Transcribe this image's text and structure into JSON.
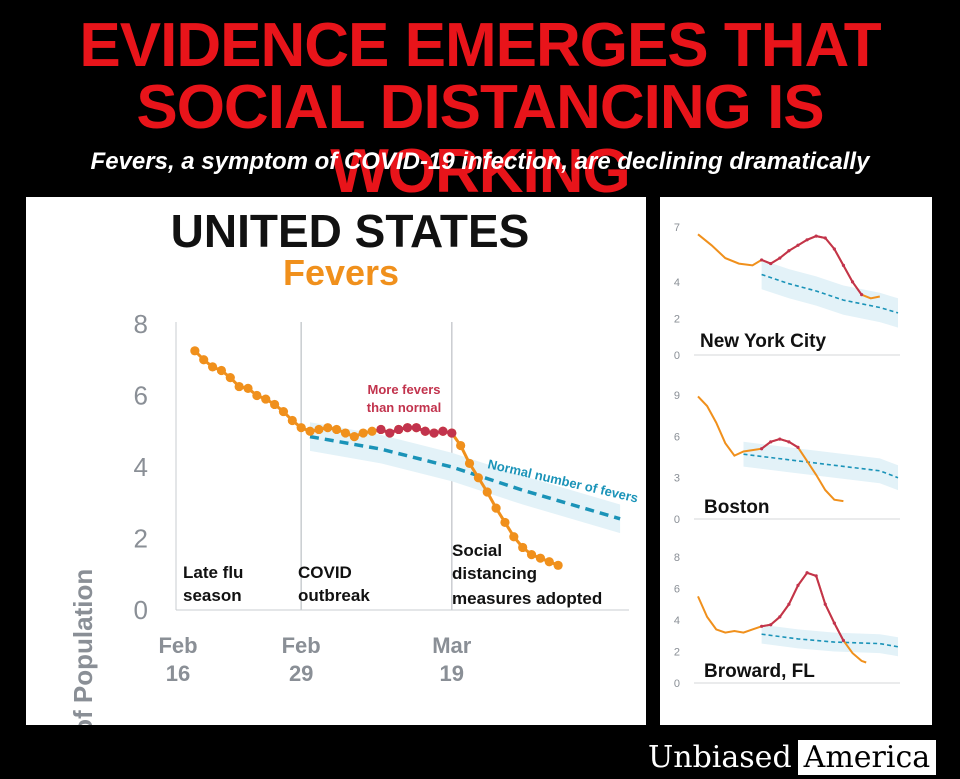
{
  "headline": {
    "line1": "EVIDENCE EMERGES THAT",
    "line2": "SOCIAL DISTANCING IS WORKING",
    "subtitle": "Fevers, a symptom of COVID-19 infection, are declining dramatically"
  },
  "brand": {
    "part1": "Unbiased",
    "part2": "America"
  },
  "colors": {
    "headline": "#e8141a",
    "observed": "#f0901c",
    "above_normal": "#c2334d",
    "expected": "#1a93b8",
    "band": "#e3f2f8",
    "axis_text": "#8a8f96"
  },
  "chart_data": [
    {
      "type": "line",
      "title": "UNITED STATES",
      "subtitle": "Fevers",
      "ylabel": "% of Population",
      "ylim": [
        0,
        8
      ],
      "yticks": [
        0,
        2,
        4,
        6,
        8
      ],
      "x_range": [
        0,
        40
      ],
      "x_ticks": [
        {
          "x": 0,
          "label1": "Feb",
          "label2": "16"
        },
        {
          "x": 13,
          "label1": "Feb",
          "label2": "29"
        },
        {
          "x": 30,
          "label1": "Mar",
          "label2": "19"
        }
      ],
      "phases": [
        {
          "x": 13,
          "label1": "COVID",
          "label2": "outbreak"
        },
        {
          "x": 30,
          "label1": "Social",
          "label2": "distancing",
          "label3": "measures adopted"
        }
      ],
      "phase0": {
        "label1": "Late flu",
        "label2": "season"
      },
      "annotations": {
        "above_normal1": "More fevers",
        "above_normal2": "than normal",
        "normal": "Normal number of fevers"
      },
      "observed": [
        [
          1,
          7.25
        ],
        [
          2,
          7.0
        ],
        [
          3,
          6.8
        ],
        [
          4,
          6.7
        ],
        [
          5,
          6.5
        ],
        [
          6,
          6.25
        ],
        [
          7,
          6.2
        ],
        [
          8,
          6.0
        ],
        [
          9,
          5.9
        ],
        [
          10,
          5.75
        ],
        [
          11,
          5.55
        ],
        [
          12,
          5.3
        ],
        [
          13,
          5.1
        ],
        [
          14,
          5.0
        ],
        [
          15,
          5.05
        ],
        [
          16,
          5.1
        ],
        [
          17,
          5.05
        ],
        [
          18,
          4.95
        ],
        [
          19,
          4.85
        ],
        [
          20,
          4.95
        ],
        [
          21,
          5.0
        ],
        [
          22,
          5.05
        ],
        [
          23,
          4.95
        ],
        [
          24,
          5.05
        ],
        [
          25,
          5.1
        ],
        [
          26,
          5.1
        ],
        [
          27,
          5.0
        ],
        [
          28,
          4.95
        ],
        [
          29,
          5.0
        ],
        [
          30,
          4.95
        ],
        [
          31,
          4.6
        ],
        [
          32,
          4.1
        ],
        [
          33,
          3.7
        ],
        [
          34,
          3.3
        ],
        [
          35,
          2.85
        ],
        [
          36,
          2.45
        ],
        [
          37,
          2.05
        ],
        [
          38,
          1.75
        ],
        [
          39,
          1.55
        ],
        [
          40,
          1.45
        ],
        [
          41,
          1.35
        ],
        [
          42,
          1.25
        ]
      ],
      "above_normal": [
        [
          22,
          5.05
        ],
        [
          23,
          4.95
        ],
        [
          24,
          5.05
        ],
        [
          25,
          5.1
        ],
        [
          26,
          5.1
        ],
        [
          27,
          5.0
        ],
        [
          28,
          4.95
        ],
        [
          29,
          5.0
        ],
        [
          30,
          4.95
        ]
      ],
      "expected": [
        [
          14,
          4.85
        ],
        [
          22,
          4.5
        ],
        [
          30,
          4.0
        ],
        [
          38,
          3.35
        ],
        [
          49,
          2.55
        ]
      ],
      "band_halfwidth": 0.4
    },
    {
      "type": "line",
      "name": "New York City",
      "ylim": [
        0,
        7
      ],
      "yticks": [
        0,
        2,
        4,
        7
      ],
      "x_range": [
        0,
        40
      ],
      "observed": [
        [
          0,
          6.6
        ],
        [
          3,
          6.0
        ],
        [
          6,
          5.3
        ],
        [
          9,
          5.0
        ],
        [
          12,
          4.9
        ],
        [
          14,
          5.2
        ],
        [
          16,
          5.0
        ],
        [
          18,
          5.3
        ],
        [
          20,
          5.7
        ],
        [
          22,
          6.0
        ],
        [
          24,
          6.3
        ],
        [
          26,
          6.5
        ],
        [
          28,
          6.4
        ],
        [
          30,
          5.8
        ],
        [
          32,
          4.9
        ],
        [
          34,
          4.0
        ],
        [
          36,
          3.3
        ],
        [
          38,
          3.1
        ],
        [
          40,
          3.2
        ]
      ],
      "above_normal": [
        [
          14,
          5.2
        ],
        [
          16,
          5.0
        ],
        [
          18,
          5.3
        ],
        [
          20,
          5.7
        ],
        [
          22,
          6.0
        ],
        [
          24,
          6.3
        ],
        [
          26,
          6.5
        ],
        [
          28,
          6.4
        ],
        [
          30,
          5.8
        ],
        [
          32,
          4.9
        ],
        [
          34,
          4.0
        ],
        [
          36,
          3.3
        ]
      ],
      "expected": [
        [
          14,
          4.4
        ],
        [
          20,
          3.9
        ],
        [
          26,
          3.5
        ],
        [
          32,
          3.0
        ],
        [
          40,
          2.6
        ],
        [
          44,
          2.3
        ]
      ],
      "band_halfwidth": 0.8
    },
    {
      "type": "line",
      "name": "Boston",
      "ylim": [
        0,
        9
      ],
      "yticks": [
        0,
        3,
        6,
        9
      ],
      "x_range": [
        0,
        40
      ],
      "observed": [
        [
          0,
          8.9
        ],
        [
          2,
          8.2
        ],
        [
          4,
          7.0
        ],
        [
          6,
          5.5
        ],
        [
          8,
          4.6
        ],
        [
          10,
          4.9
        ],
        [
          12,
          5.0
        ],
        [
          14,
          5.1
        ],
        [
          16,
          5.6
        ],
        [
          18,
          5.8
        ],
        [
          20,
          5.6
        ],
        [
          22,
          5.2
        ],
        [
          24,
          4.2
        ],
        [
          26,
          3.2
        ],
        [
          28,
          2.1
        ],
        [
          30,
          1.4
        ],
        [
          32,
          1.3
        ]
      ],
      "above_normal": [
        [
          14,
          5.1
        ],
        [
          16,
          5.6
        ],
        [
          18,
          5.8
        ],
        [
          20,
          5.6
        ],
        [
          22,
          5.2
        ]
      ],
      "expected": [
        [
          10,
          4.7
        ],
        [
          20,
          4.3
        ],
        [
          30,
          3.9
        ],
        [
          40,
          3.5
        ],
        [
          44,
          3.0
        ]
      ],
      "band_halfwidth": 0.9
    },
    {
      "type": "line",
      "name": "Broward, FL",
      "ylim": [
        0,
        8
      ],
      "yticks": [
        0,
        2,
        4,
        6,
        8
      ],
      "x_range": [
        0,
        40
      ],
      "observed": [
        [
          0,
          5.5
        ],
        [
          2,
          4.2
        ],
        [
          4,
          3.4
        ],
        [
          6,
          3.2
        ],
        [
          8,
          3.3
        ],
        [
          10,
          3.2
        ],
        [
          12,
          3.4
        ],
        [
          14,
          3.6
        ],
        [
          16,
          3.7
        ],
        [
          18,
          4.2
        ],
        [
          20,
          5.0
        ],
        [
          22,
          6.2
        ],
        [
          24,
          7.0
        ],
        [
          26,
          6.8
        ],
        [
          28,
          5.0
        ],
        [
          30,
          3.8
        ],
        [
          32,
          2.7
        ],
        [
          34,
          1.9
        ],
        [
          36,
          1.4
        ],
        [
          37,
          1.3
        ]
      ],
      "above_normal": [
        [
          14,
          3.6
        ],
        [
          16,
          3.7
        ],
        [
          18,
          4.2
        ],
        [
          20,
          5.0
        ],
        [
          22,
          6.2
        ],
        [
          24,
          7.0
        ],
        [
          26,
          6.8
        ],
        [
          28,
          5.0
        ],
        [
          30,
          3.8
        ],
        [
          32,
          2.7
        ]
      ],
      "expected": [
        [
          14,
          3.1
        ],
        [
          22,
          2.8
        ],
        [
          30,
          2.6
        ],
        [
          40,
          2.5
        ],
        [
          44,
          2.3
        ]
      ],
      "band_halfwidth": 0.6
    }
  ]
}
